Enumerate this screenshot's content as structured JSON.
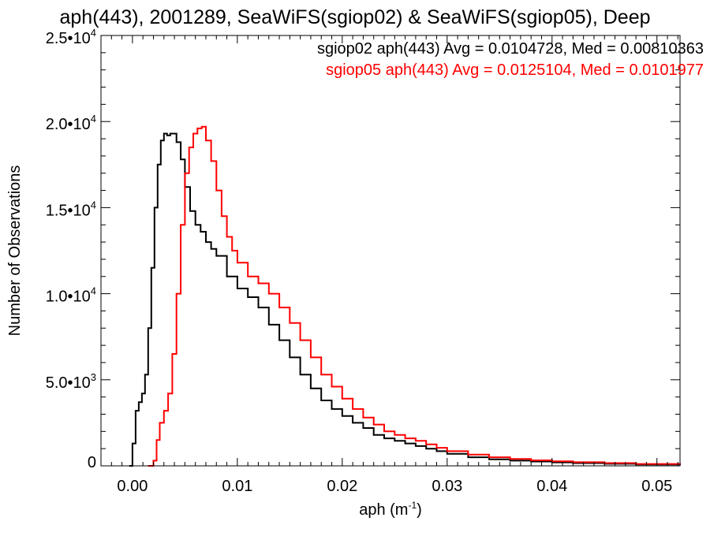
{
  "chart_data": {
    "type": "line",
    "title": "aph(443), 2001289, SeaWiFS(sgiop02) & SeaWiFS(sgiop05), Deep",
    "xlabel": "aph (m",
    "xlabel_exp": "-1",
    "xlabel_tail": ")",
    "ylabel": "Number of Observations",
    "xlim": [
      -0.003,
      0.0522
    ],
    "ylim": [
      0,
      25000
    ],
    "xticks": [
      {
        "value": 0.0,
        "label": "0.00"
      },
      {
        "value": 0.01,
        "label": "0.01"
      },
      {
        "value": 0.02,
        "label": "0.02"
      },
      {
        "value": 0.03,
        "label": "0.03"
      },
      {
        "value": 0.04,
        "label": "0.04"
      },
      {
        "value": 0.05,
        "label": "0.05"
      }
    ],
    "yticks": [
      {
        "value": 0,
        "base": "0",
        "exp": ""
      },
      {
        "value": 5000,
        "base": "5.0•10",
        "exp": "3"
      },
      {
        "value": 10000,
        "base": "1.0•10",
        "exp": "4"
      },
      {
        "value": 15000,
        "base": "1.5•10",
        "exp": "4"
      },
      {
        "value": 20000,
        "base": "2.0•10",
        "exp": "4"
      },
      {
        "value": 25000,
        "base": "2.5•10",
        "exp": "4"
      }
    ],
    "annotations": [
      {
        "text": "sgiop02 aph(443) Avg = 0.0104728, Med = 0.00810363",
        "color": "#000000"
      },
      {
        "text": "sgiop05 aph(443) Avg = 0.0125104, Med = 0.0101977",
        "color": "#ff0000"
      }
    ],
    "series": [
      {
        "color": "#000000",
        "x": [
          -0.0003,
          0.0,
          0.0003,
          0.0006,
          0.0009,
          0.0012,
          0.0015,
          0.0018,
          0.0021,
          0.0024,
          0.0027,
          0.003,
          0.0033,
          0.0036,
          0.0039,
          0.0042,
          0.0046,
          0.005,
          0.0055,
          0.006,
          0.0065,
          0.007,
          0.0075,
          0.008,
          0.009,
          0.01,
          0.011,
          0.012,
          0.013,
          0.014,
          0.015,
          0.016,
          0.017,
          0.018,
          0.019,
          0.02,
          0.021,
          0.022,
          0.023,
          0.024,
          0.025,
          0.026,
          0.027,
          0.028,
          0.029,
          0.03,
          0.032,
          0.034,
          0.036,
          0.038,
          0.04,
          0.042,
          0.045,
          0.048,
          0.0522
        ],
        "y": [
          0,
          1300,
          3200,
          3700,
          4200,
          5300,
          8000,
          11500,
          15000,
          17500,
          18900,
          19300,
          19200,
          19300,
          19300,
          18800,
          17800,
          16200,
          14800,
          14000,
          13600,
          13000,
          12600,
          12200,
          11000,
          10300,
          9800,
          9200,
          8200,
          7300,
          6300,
          5300,
          4500,
          3800,
          3300,
          2900,
          2500,
          2200,
          1800,
          1600,
          1450,
          1300,
          1150,
          1000,
          850,
          700,
          500,
          380,
          300,
          250,
          200,
          160,
          120,
          80,
          40
        ]
      },
      {
        "color": "#ff0000",
        "x": [
          0.0015,
          0.002,
          0.0023,
          0.0026,
          0.003,
          0.0034,
          0.0038,
          0.0042,
          0.0046,
          0.005,
          0.0054,
          0.0058,
          0.0062,
          0.0066,
          0.007,
          0.0075,
          0.008,
          0.0085,
          0.009,
          0.0095,
          0.01,
          0.011,
          0.012,
          0.013,
          0.014,
          0.015,
          0.016,
          0.017,
          0.018,
          0.019,
          0.02,
          0.021,
          0.022,
          0.023,
          0.024,
          0.025,
          0.026,
          0.027,
          0.028,
          0.029,
          0.03,
          0.032,
          0.034,
          0.036,
          0.038,
          0.04,
          0.042,
          0.045,
          0.048,
          0.0522
        ],
        "y": [
          0,
          300,
          1500,
          2500,
          3200,
          4200,
          6500,
          10000,
          14000,
          17000,
          18500,
          19300,
          19600,
          19700,
          18900,
          17700,
          16000,
          14500,
          13300,
          12500,
          11800,
          11000,
          10600,
          10000,
          9200,
          8300,
          7300,
          6300,
          5300,
          4600,
          3900,
          3300,
          2800,
          2400,
          2000,
          1800,
          1600,
          1450,
          1250,
          1050,
          850,
          650,
          500,
          400,
          320,
          260,
          210,
          160,
          110,
          60
        ]
      }
    ]
  }
}
